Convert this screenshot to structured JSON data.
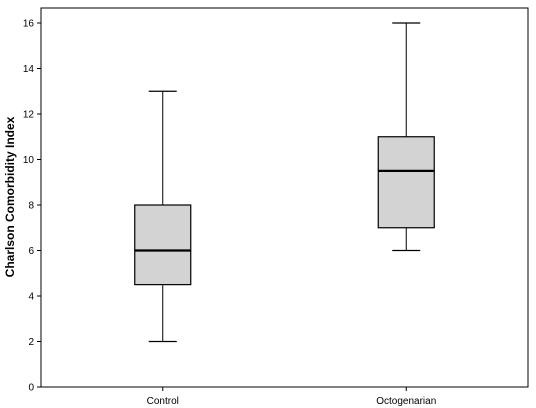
{
  "chart_data": {
    "type": "boxplot",
    "title": "",
    "xlabel": "",
    "ylabel": "Charlson Comorbidity Index",
    "ylim": [
      0,
      16
    ],
    "yticks": [
      0,
      2,
      4,
      6,
      8,
      10,
      12,
      14,
      16
    ],
    "grid": false,
    "categories": [
      "Control",
      "Octogenarian"
    ],
    "series": [
      {
        "category": "Control",
        "min": 2,
        "q1": 4.5,
        "median": 6,
        "q3": 8,
        "max": 13
      },
      {
        "category": "Octogenarian",
        "min": 6,
        "q1": 7,
        "median": 9.5,
        "q3": 11,
        "max": 16
      }
    ],
    "colors": {
      "box_fill": "#d3d3d3",
      "stroke": "#000000"
    }
  }
}
